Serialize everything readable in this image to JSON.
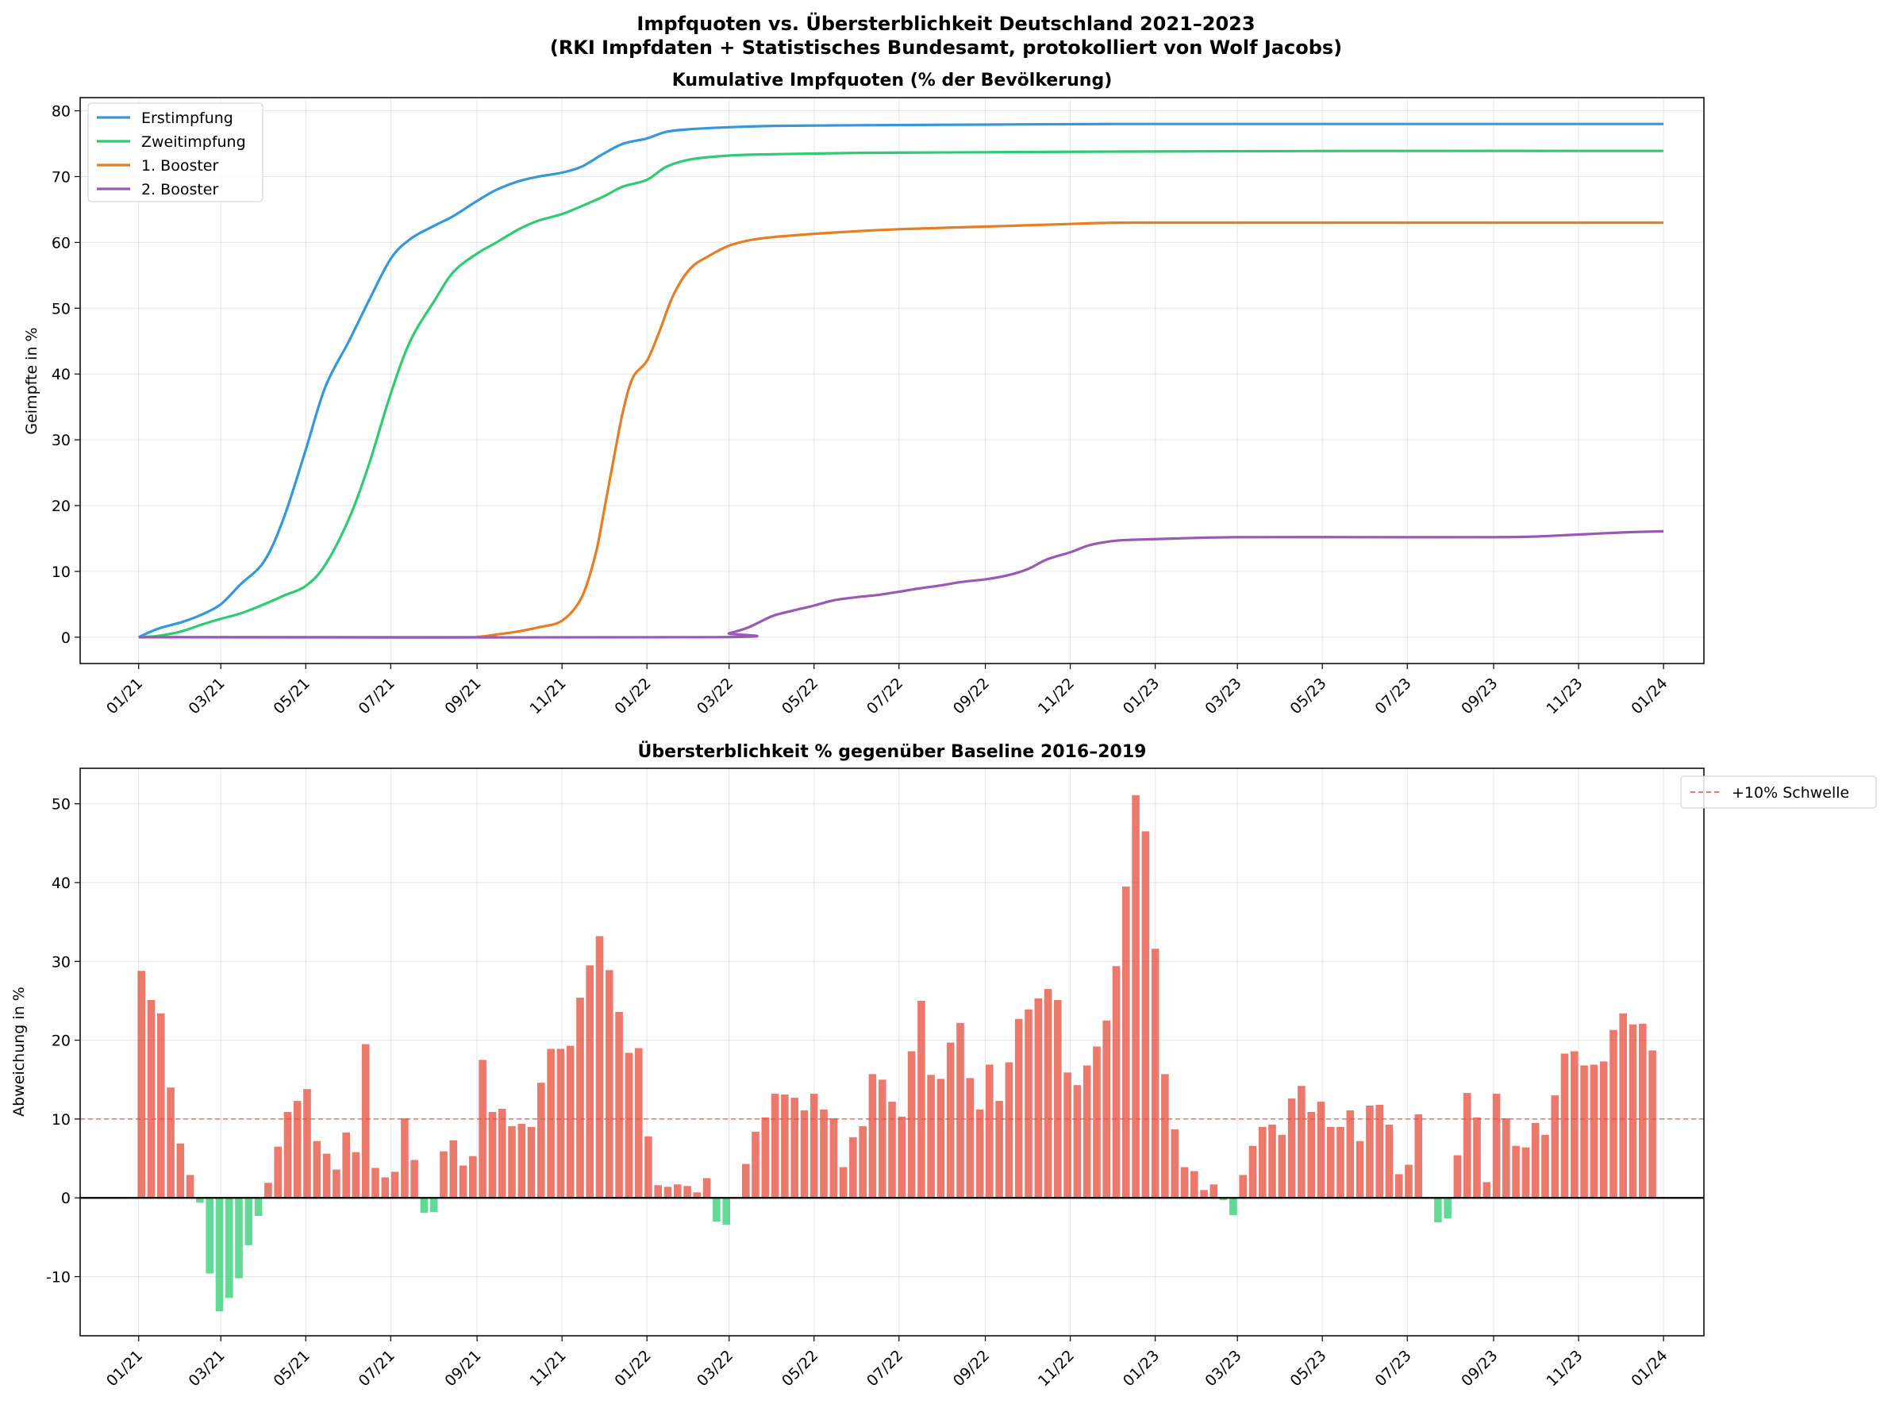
{
  "figure": {
    "title_line1": "Impfquoten vs. Übersterblichkeit Deutschland 2021–2023",
    "title_line2": "(RKI Impfdaten + Statistisches Bundesamt, protokolliert von Wolf Jacobs)"
  },
  "chart_data": [
    {
      "type": "line",
      "title": "Kumulative Impfquoten (% der Bevölkerung)",
      "xlabel": "",
      "ylabel": "Geimpfte in %",
      "x_range": [
        "2020-11-20",
        "2024-01-30"
      ],
      "ylim": [
        -4,
        82
      ],
      "yticks": [
        0,
        10,
        20,
        30,
        40,
        50,
        60,
        70,
        80
      ],
      "xticks": [
        {
          "date": "2021-01-01",
          "label": "01/21"
        },
        {
          "date": "2021-03-01",
          "label": "03/21"
        },
        {
          "date": "2021-05-01",
          "label": "05/21"
        },
        {
          "date": "2021-07-01",
          "label": "07/21"
        },
        {
          "date": "2021-09-01",
          "label": "09/21"
        },
        {
          "date": "2021-11-01",
          "label": "11/21"
        },
        {
          "date": "2022-01-01",
          "label": "01/22"
        },
        {
          "date": "2022-03-01",
          "label": "03/22"
        },
        {
          "date": "2022-05-01",
          "label": "05/22"
        },
        {
          "date": "2022-07-01",
          "label": "07/22"
        },
        {
          "date": "2022-09-01",
          "label": "09/22"
        },
        {
          "date": "2022-11-01",
          "label": "11/22"
        },
        {
          "date": "2023-01-01",
          "label": "01/23"
        },
        {
          "date": "2023-03-01",
          "label": "03/23"
        },
        {
          "date": "2023-05-01",
          "label": "05/23"
        },
        {
          "date": "2023-07-01",
          "label": "07/23"
        },
        {
          "date": "2023-09-01",
          "label": "09/23"
        },
        {
          "date": "2023-11-01",
          "label": "11/23"
        },
        {
          "date": "2024-01-01",
          "label": "01/24"
        }
      ],
      "grid": true,
      "legend": "upper-left",
      "series": [
        {
          "name": "Erstimpfung",
          "color": "#3498db",
          "points": [
            [
              "2021-01-01",
              0
            ],
            [
              "2021-01-15",
              1.3
            ],
            [
              "2021-02-01",
              2.3
            ],
            [
              "2021-02-15",
              3.4
            ],
            [
              "2021-03-01",
              5.0
            ],
            [
              "2021-03-15",
              8.0
            ],
            [
              "2021-04-01",
              11.5
            ],
            [
              "2021-04-15",
              18.0
            ],
            [
              "2021-05-01",
              28.5
            ],
            [
              "2021-05-15",
              38.0
            ],
            [
              "2021-06-01",
              45.0
            ],
            [
              "2021-06-15",
              51.0
            ],
            [
              "2021-07-01",
              57.5
            ],
            [
              "2021-07-15",
              60.5
            ],
            [
              "2021-08-01",
              62.5
            ],
            [
              "2021-08-15",
              64.0
            ],
            [
              "2021-09-01",
              66.3
            ],
            [
              "2021-09-15",
              68.0
            ],
            [
              "2021-10-01",
              69.3
            ],
            [
              "2021-10-15",
              70.0
            ],
            [
              "2021-11-01",
              70.6
            ],
            [
              "2021-11-15",
              71.5
            ],
            [
              "2021-12-01",
              73.5
            ],
            [
              "2021-12-15",
              75.0
            ],
            [
              "2022-01-01",
              75.8
            ],
            [
              "2022-01-15",
              76.8
            ],
            [
              "2022-02-01",
              77.2
            ],
            [
              "2022-03-01",
              77.5
            ],
            [
              "2022-04-01",
              77.7
            ],
            [
              "2022-06-01",
              77.8
            ],
            [
              "2022-09-01",
              77.9
            ],
            [
              "2022-12-01",
              78.0
            ],
            [
              "2023-06-01",
              78.0
            ],
            [
              "2024-01-01",
              78.0
            ]
          ]
        },
        {
          "name": "Zweitimpfung",
          "color": "#2ecc71",
          "points": [
            [
              "2021-01-01",
              0
            ],
            [
              "2021-01-15",
              0.2
            ],
            [
              "2021-02-01",
              0.9
            ],
            [
              "2021-02-15",
              1.9
            ],
            [
              "2021-03-01",
              2.8
            ],
            [
              "2021-03-15",
              3.6
            ],
            [
              "2021-04-01",
              5.0
            ],
            [
              "2021-04-15",
              6.3
            ],
            [
              "2021-05-01",
              7.8
            ],
            [
              "2021-05-15",
              11.0
            ],
            [
              "2021-06-01",
              18.0
            ],
            [
              "2021-06-15",
              26.0
            ],
            [
              "2021-07-01",
              37.0
            ],
            [
              "2021-07-15",
              45.0
            ],
            [
              "2021-08-01",
              51.0
            ],
            [
              "2021-08-15",
              55.5
            ],
            [
              "2021-09-01",
              58.3
            ],
            [
              "2021-09-15",
              60.0
            ],
            [
              "2021-10-01",
              62.0
            ],
            [
              "2021-10-15",
              63.3
            ],
            [
              "2021-11-01",
              64.3
            ],
            [
              "2021-11-15",
              65.5
            ],
            [
              "2021-12-01",
              67.0
            ],
            [
              "2021-12-15",
              68.5
            ],
            [
              "2022-01-01",
              69.5
            ],
            [
              "2022-01-15",
              71.5
            ],
            [
              "2022-02-01",
              72.6
            ],
            [
              "2022-03-01",
              73.2
            ],
            [
              "2022-04-01",
              73.4
            ],
            [
              "2022-06-01",
              73.6
            ],
            [
              "2022-09-01",
              73.7
            ],
            [
              "2022-12-01",
              73.8
            ],
            [
              "2023-06-01",
              73.9
            ],
            [
              "2024-01-01",
              73.9
            ]
          ]
        },
        {
          "name": "1. Booster",
          "color": "#e67e22",
          "points": [
            [
              "2021-01-01",
              0
            ],
            [
              "2021-08-15",
              0
            ],
            [
              "2021-09-01",
              0.05
            ],
            [
              "2021-09-15",
              0.4
            ],
            [
              "2021-10-01",
              0.9
            ],
            [
              "2021-10-15",
              1.5
            ],
            [
              "2021-11-01",
              2.5
            ],
            [
              "2021-11-15",
              6.0
            ],
            [
              "2021-11-25",
              12.5
            ],
            [
              "2021-12-01",
              19.0
            ],
            [
              "2021-12-08",
              27.0
            ],
            [
              "2021-12-15",
              34.5
            ],
            [
              "2021-12-22",
              39.5
            ],
            [
              "2022-01-01",
              42.0
            ],
            [
              "2022-01-10",
              46.5
            ],
            [
              "2022-01-20",
              52.0
            ],
            [
              "2022-02-01",
              56.0
            ],
            [
              "2022-02-15",
              58.0
            ],
            [
              "2022-03-01",
              59.5
            ],
            [
              "2022-03-15",
              60.3
            ],
            [
              "2022-04-01",
              60.8
            ],
            [
              "2022-05-01",
              61.3
            ],
            [
              "2022-06-01",
              61.7
            ],
            [
              "2022-07-01",
              62.0
            ],
            [
              "2022-09-01",
              62.4
            ],
            [
              "2022-11-01",
              62.8
            ],
            [
              "2022-12-15",
              63.0
            ],
            [
              "2023-06-01",
              63.0
            ],
            [
              "2024-01-01",
              63.0
            ]
          ]
        },
        {
          "name": "2. Booster",
          "color": "#9b59b6",
          "points": [
            [
              "2021-01-01",
              0
            ],
            [
              "2022-02-15",
              0
            ],
            [
              "2022-03-01",
              0.6
            ],
            [
              "2022-03-15",
              1.5
            ],
            [
              "2022-04-01",
              3.2
            ],
            [
              "2022-04-15",
              4.0
            ],
            [
              "2022-05-01",
              4.8
            ],
            [
              "2022-05-15",
              5.6
            ],
            [
              "2022-06-01",
              6.1
            ],
            [
              "2022-06-15",
              6.4
            ],
            [
              "2022-07-01",
              6.9
            ],
            [
              "2022-07-15",
              7.4
            ],
            [
              "2022-08-01",
              7.9
            ],
            [
              "2022-08-15",
              8.4
            ],
            [
              "2022-09-01",
              8.8
            ],
            [
              "2022-09-15",
              9.3
            ],
            [
              "2022-10-01",
              10.3
            ],
            [
              "2022-10-15",
              11.8
            ],
            [
              "2022-11-01",
              12.9
            ],
            [
              "2022-11-15",
              14.0
            ],
            [
              "2022-12-01",
              14.6
            ],
            [
              "2022-12-15",
              14.8
            ],
            [
              "2023-01-15",
              15.0
            ],
            [
              "2023-03-01",
              15.2
            ],
            [
              "2023-06-01",
              15.2
            ],
            [
              "2023-09-01",
              15.2
            ],
            [
              "2023-10-01",
              15.3
            ],
            [
              "2023-11-01",
              15.6
            ],
            [
              "2023-12-01",
              15.9
            ],
            [
              "2024-01-01",
              16.1
            ]
          ]
        }
      ]
    },
    {
      "type": "bar",
      "title": "Übersterblichkeit % gegenüber Baseline 2016–2019",
      "xlabel": "",
      "ylabel": "Abweichung in %",
      "x_range": [
        "2020-11-20",
        "2024-01-30"
      ],
      "ylim": [
        -17.5,
        54.5
      ],
      "yticks": [
        -10,
        0,
        10,
        20,
        30,
        40,
        50
      ],
      "xticks": [
        {
          "date": "2021-01-01",
          "label": "01/21"
        },
        {
          "date": "2021-03-01",
          "label": "03/21"
        },
        {
          "date": "2021-05-01",
          "label": "05/21"
        },
        {
          "date": "2021-07-01",
          "label": "07/21"
        },
        {
          "date": "2021-09-01",
          "label": "09/21"
        },
        {
          "date": "2021-11-01",
          "label": "11/21"
        },
        {
          "date": "2022-01-01",
          "label": "01/22"
        },
        {
          "date": "2022-03-01",
          "label": "03/22"
        },
        {
          "date": "2022-05-01",
          "label": "05/22"
        },
        {
          "date": "2022-07-01",
          "label": "07/22"
        },
        {
          "date": "2022-09-01",
          "label": "09/22"
        },
        {
          "date": "2022-11-01",
          "label": "11/22"
        },
        {
          "date": "2023-01-01",
          "label": "01/23"
        },
        {
          "date": "2023-03-01",
          "label": "03/23"
        },
        {
          "date": "2023-05-01",
          "label": "05/23"
        },
        {
          "date": "2023-07-01",
          "label": "07/23"
        },
        {
          "date": "2023-09-01",
          "label": "09/23"
        },
        {
          "date": "2023-11-01",
          "label": "11/23"
        },
        {
          "date": "2024-01-01",
          "label": "01/24"
        }
      ],
      "grid": true,
      "legend": "upper-right",
      "positive_color": "#e74c3c",
      "negative_color": "#2ecc71",
      "x_start": "2021-01-03",
      "x_interval_days": 7,
      "values": [
        28.8,
        25.1,
        23.4,
        14.0,
        6.9,
        2.9,
        -0.6,
        -9.6,
        -14.4,
        -12.7,
        -10.2,
        -6.0,
        -2.3,
        1.9,
        6.5,
        10.9,
        12.3,
        13.8,
        7.2,
        5.6,
        3.6,
        8.3,
        5.8,
        19.5,
        3.8,
        2.6,
        3.3,
        10.1,
        4.8,
        -1.9,
        -1.8,
        5.9,
        7.3,
        4.1,
        5.3,
        17.5,
        10.9,
        11.3,
        9.1,
        9.4,
        9.0,
        14.6,
        18.9,
        18.9,
        19.3,
        25.4,
        29.5,
        33.2,
        28.9,
        23.6,
        18.4,
        19.0,
        7.8,
        1.6,
        1.4,
        1.7,
        1.5,
        0.7,
        2.5,
        -3.0,
        -3.4,
        0.0,
        4.3,
        8.4,
        10.2,
        13.2,
        13.1,
        12.7,
        11.1,
        13.2,
        11.2,
        10.1,
        3.9,
        7.7,
        9.1,
        15.7,
        15.0,
        12.2,
        10.3,
        18.6,
        25.0,
        15.6,
        15.1,
        19.7,
        22.2,
        15.2,
        11.2,
        16.9,
        12.3,
        17.2,
        22.7,
        23.9,
        25.3,
        26.5,
        25.1,
        15.9,
        14.3,
        16.8,
        19.2,
        22.5,
        29.4,
        39.5,
        51.1,
        46.5,
        31.6,
        15.7,
        8.7,
        3.9,
        3.4,
        1.0,
        1.7,
        -0.3,
        -2.2,
        2.9,
        6.6,
        9.0,
        9.3,
        8.0,
        12.6,
        14.2,
        10.9,
        12.2,
        9.0,
        9.0,
        11.1,
        7.2,
        11.7,
        11.8,
        9.3,
        3.0,
        4.2,
        10.6,
        0.0,
        -3.1,
        -2.6,
        5.4,
        13.3,
        10.2,
        2.0,
        13.2,
        10.1,
        6.6,
        6.4,
        9.5,
        8.0,
        13.0,
        18.3,
        18.6,
        16.8,
        16.9,
        17.3,
        21.3,
        23.4,
        22.0,
        22.1,
        18.7
      ],
      "threshold": {
        "value": 10,
        "label": "+10% Schwelle",
        "color": "#e74c3c"
      }
    }
  ]
}
